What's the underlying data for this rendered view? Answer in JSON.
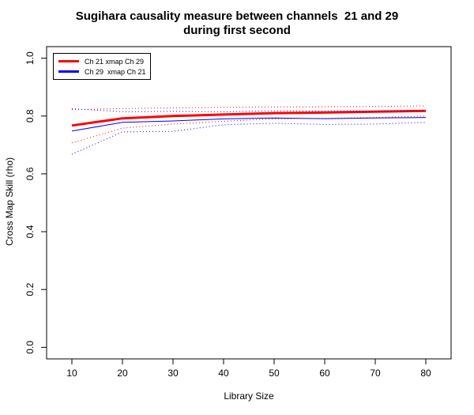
{
  "chart_data": {
    "type": "line",
    "title_lines": [
      "Sugihara causality measure between channels  21 and 29",
      "during first second"
    ],
    "xlabel": "Library Size",
    "ylabel": "Cross Map Skill (rho)",
    "xlim": [
      5,
      85
    ],
    "ylim": [
      -0.04,
      1.04
    ],
    "x_ticks": [
      10,
      20,
      30,
      40,
      50,
      60,
      70,
      80
    ],
    "y_ticks": [
      0.0,
      0.2,
      0.4,
      0.6,
      0.8,
      1.0
    ],
    "y_tick_labels": [
      "0.0",
      "0.2",
      "0.4",
      "0.6",
      "0.8",
      "1.0"
    ],
    "legend_position": "top-left",
    "x": [
      10,
      20,
      30,
      40,
      50,
      60,
      70,
      80
    ],
    "series": [
      {
        "name": "Ch 21 xmap Ch 29",
        "color": "#ff0000",
        "style": "solid-thick",
        "values": [
          0.767,
          0.792,
          0.8,
          0.805,
          0.81,
          0.812,
          0.815,
          0.818
        ]
      },
      {
        "name": "Ch 29  xmap Ch 21",
        "color": "#0000ff",
        "style": "solid",
        "values": [
          0.748,
          0.778,
          0.783,
          0.79,
          0.793,
          0.791,
          0.793,
          0.795
        ]
      },
      {
        "color": "#ff0000",
        "style": "dotted",
        "values": [
          0.707,
          0.758,
          0.772,
          0.782,
          0.79,
          0.792,
          0.795,
          0.8
        ]
      },
      {
        "color": "#ff0000",
        "style": "dotted",
        "values": [
          0.822,
          0.826,
          0.828,
          0.83,
          0.832,
          0.832,
          0.833,
          0.835
        ]
      },
      {
        "color": "#0000ff",
        "style": "dotted",
        "values": [
          0.668,
          0.745,
          0.747,
          0.77,
          0.775,
          0.771,
          0.772,
          0.778
        ]
      },
      {
        "color": "#0000ff",
        "style": "dotted",
        "values": [
          0.825,
          0.815,
          0.816,
          0.815,
          0.818,
          0.818,
          0.817,
          0.818
        ]
      }
    ]
  }
}
